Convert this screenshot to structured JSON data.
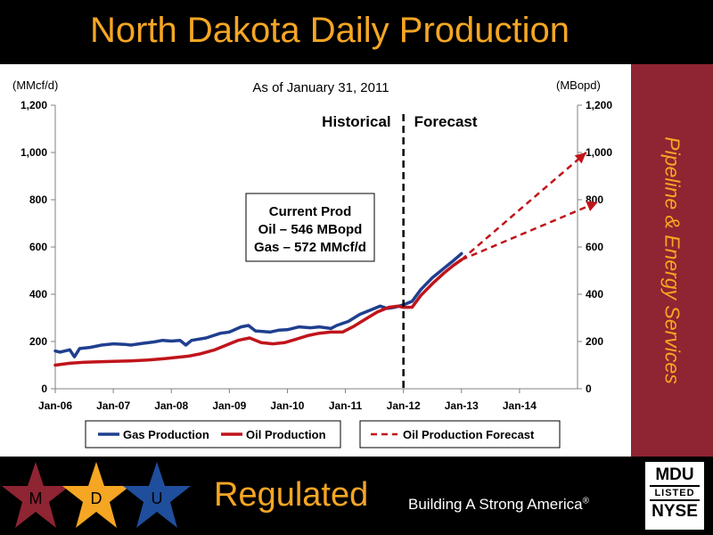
{
  "header": {
    "title": "North Dakota Daily Production"
  },
  "sidebar": {
    "text": "Pipeline & Energy Services"
  },
  "footer": {
    "stars": [
      {
        "letter": "M",
        "color": "#8f2432"
      },
      {
        "letter": "D",
        "color": "#f5a623"
      },
      {
        "letter": "U",
        "color": "#1f4e9c"
      }
    ],
    "regulated": "Regulated",
    "tagline": "Building A Strong America",
    "tagline_mark": "®",
    "nyse_logo": {
      "line1": "MDU",
      "line2": "LISTED",
      "line3": "NYSE"
    }
  },
  "chart_data": {
    "type": "line",
    "subtitle": "As of January 31, 2011",
    "ylabel_left": "(MMcf/d)",
    "ylabel_right": "(MBopd)",
    "ylim": [
      0,
      1200
    ],
    "y_ticks": [
      "0",
      "200",
      "400",
      "600",
      "800",
      "1,000",
      "1,200"
    ],
    "x_ticks": [
      "Jan-06",
      "Jan-07",
      "Jan-08",
      "Jan-09",
      "Jan-10",
      "Jan-11",
      "Jan-12",
      "Jan-13",
      "Jan-14"
    ],
    "divider_at": 6,
    "region_labels": {
      "historical": "Historical",
      "forecast": "Forecast"
    },
    "annotation": [
      "Current Prod",
      "Oil – 546 MBopd",
      "Gas – 572 MMcf/d"
    ],
    "series": [
      {
        "name": "Gas Production",
        "color": "#1f3f8f",
        "style": "solid",
        "points": [
          [
            0,
            160
          ],
          [
            0.08,
            155
          ],
          [
            0.25,
            165
          ],
          [
            0.33,
            135
          ],
          [
            0.42,
            170
          ],
          [
            0.6,
            175
          ],
          [
            0.8,
            185
          ],
          [
            1,
            190
          ],
          [
            1.2,
            188
          ],
          [
            1.3,
            185
          ],
          [
            1.5,
            192
          ],
          [
            1.7,
            198
          ],
          [
            1.85,
            205
          ],
          [
            2,
            202
          ],
          [
            2.15,
            205
          ],
          [
            2.25,
            185
          ],
          [
            2.35,
            205
          ],
          [
            2.6,
            215
          ],
          [
            2.85,
            235
          ],
          [
            3,
            240
          ],
          [
            3.2,
            262
          ],
          [
            3.33,
            268
          ],
          [
            3.45,
            245
          ],
          [
            3.7,
            240
          ],
          [
            3.85,
            248
          ],
          [
            4,
            250
          ],
          [
            4.2,
            262
          ],
          [
            4.4,
            258
          ],
          [
            4.55,
            262
          ],
          [
            4.75,
            255
          ],
          [
            4.85,
            268
          ],
          [
            5.05,
            285
          ],
          [
            5.25,
            315
          ],
          [
            5.45,
            335
          ],
          [
            5.6,
            350
          ],
          [
            5.72,
            340
          ],
          [
            5.85,
            345
          ],
          [
            6,
            355
          ],
          [
            6.15,
            370
          ],
          [
            6.3,
            420
          ],
          [
            6.5,
            470
          ],
          [
            6.7,
            510
          ],
          [
            6.85,
            540
          ],
          [
            7,
            572
          ]
        ]
      },
      {
        "name": "Oil Production",
        "color": "#c0141b",
        "style": "solid",
        "points": [
          [
            0,
            100
          ],
          [
            0.25,
            108
          ],
          [
            0.5,
            112
          ],
          [
            0.75,
            114
          ],
          [
            1,
            116
          ],
          [
            1.3,
            118
          ],
          [
            1.6,
            122
          ],
          [
            1.9,
            128
          ],
          [
            2.1,
            133
          ],
          [
            2.3,
            138
          ],
          [
            2.5,
            148
          ],
          [
            2.75,
            165
          ],
          [
            2.95,
            185
          ],
          [
            3.15,
            205
          ],
          [
            3.35,
            215
          ],
          [
            3.55,
            195
          ],
          [
            3.75,
            190
          ],
          [
            3.95,
            195
          ],
          [
            4.15,
            210
          ],
          [
            4.35,
            225
          ],
          [
            4.55,
            235
          ],
          [
            4.75,
            240
          ],
          [
            4.95,
            240
          ],
          [
            5.15,
            265
          ],
          [
            5.35,
            295
          ],
          [
            5.55,
            325
          ],
          [
            5.75,
            345
          ],
          [
            5.9,
            350
          ],
          [
            6,
            345
          ],
          [
            6.15,
            345
          ],
          [
            6.3,
            395
          ],
          [
            6.5,
            445
          ],
          [
            6.7,
            490
          ],
          [
            6.85,
            520
          ],
          [
            7,
            546
          ]
        ]
      },
      {
        "name": "Oil Production Forecast",
        "color": "#c0141b",
        "style": "dashed",
        "lines": [
          [
            [
              7,
              546
            ],
            [
              9.15,
              1000
            ]
          ],
          [
            [
              7,
              546
            ],
            [
              9.35,
              790
            ]
          ]
        ]
      }
    ],
    "legend_position": "bottom"
  }
}
